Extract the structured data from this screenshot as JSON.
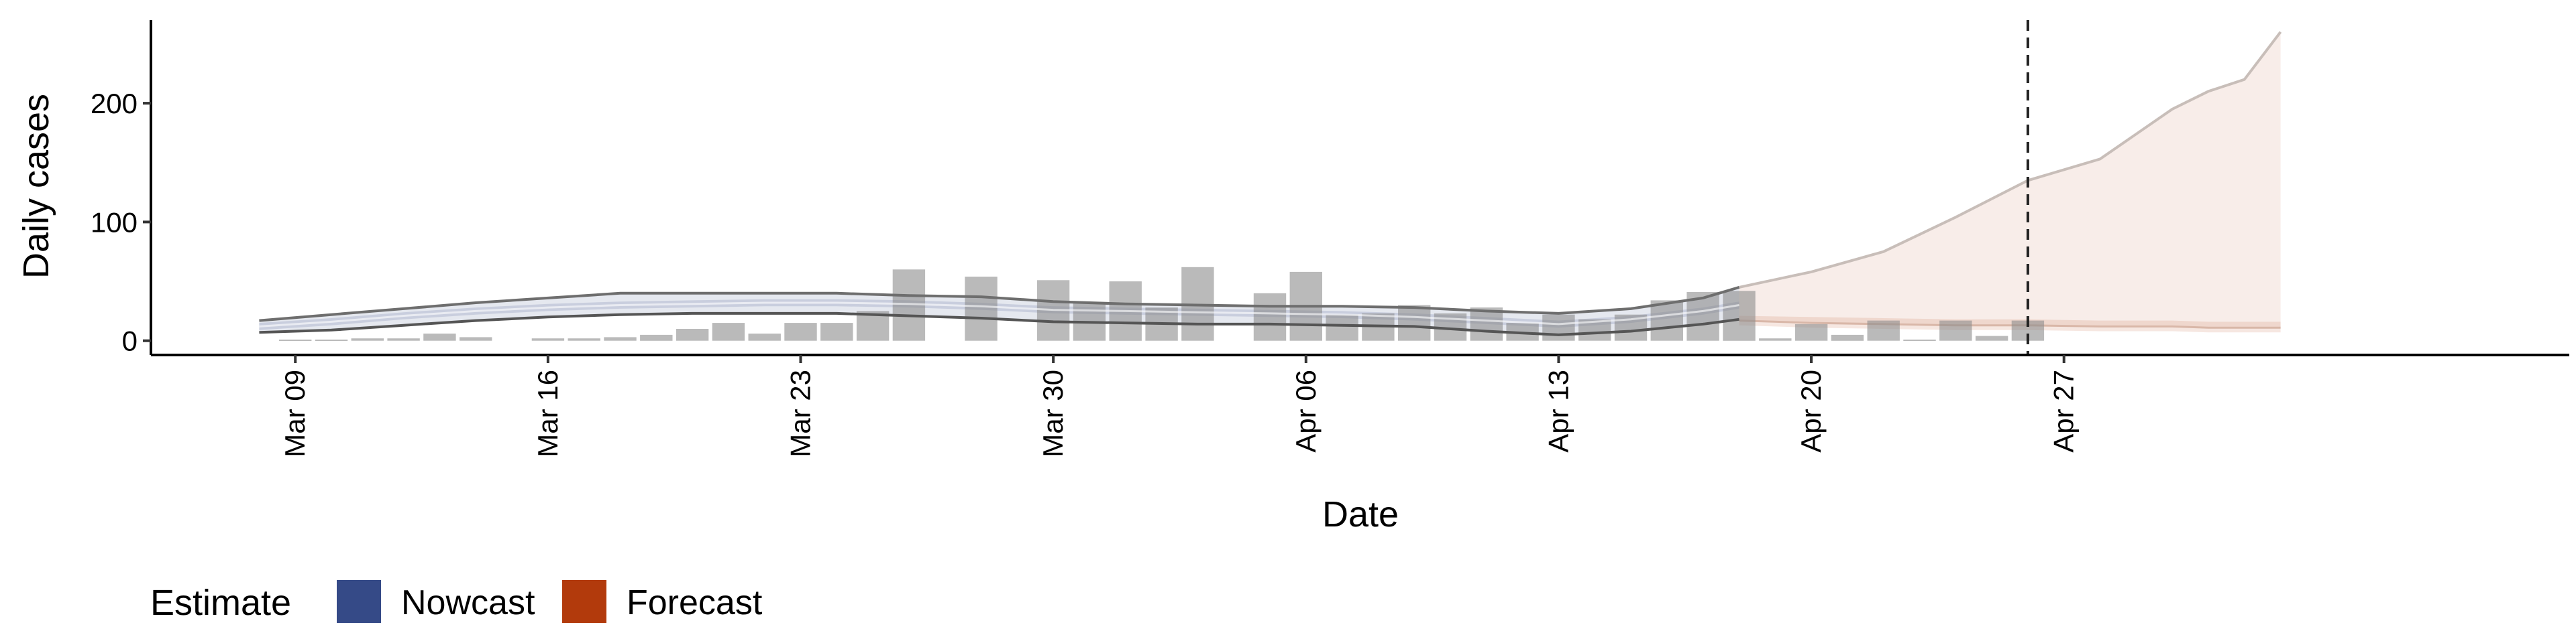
{
  "chart_data": {
    "type": "bar",
    "title": "",
    "xlabel": "Date",
    "ylabel": "Daily cases",
    "x_ticks": [
      "Mar 09",
      "Mar 16",
      "Mar 23",
      "Mar 30",
      "Apr 06",
      "Apr 13",
      "Apr 20",
      "Apr 27"
    ],
    "y_ticks": [
      0,
      100,
      200
    ],
    "ylim": [
      -12,
      270
    ],
    "xlim": [
      "2020-03-05",
      "2020-05-11"
    ],
    "grid": false,
    "legend": {
      "title": "Estimate",
      "position": "bottom-left",
      "items": [
        {
          "label": "Nowcast",
          "color": "#354a87"
        },
        {
          "label": "Forecast",
          "color": "#b23a0c"
        }
      ]
    },
    "vline_date": "2020-04-26",
    "reported_cases": {
      "color": "#8c8c8c",
      "dates": [
        "2020-03-09",
        "2020-03-10",
        "2020-03-11",
        "2020-03-12",
        "2020-03-13",
        "2020-03-14",
        "2020-03-15",
        "2020-03-16",
        "2020-03-17",
        "2020-03-18",
        "2020-03-19",
        "2020-03-20",
        "2020-03-21",
        "2020-03-22",
        "2020-03-23",
        "2020-03-24",
        "2020-03-25",
        "2020-03-26",
        "2020-03-27",
        "2020-03-28",
        "2020-03-29",
        "2020-03-30",
        "2020-03-31",
        "2020-04-01",
        "2020-04-02",
        "2020-04-03",
        "2020-04-04",
        "2020-04-05",
        "2020-04-06",
        "2020-04-07",
        "2020-04-08",
        "2020-04-09",
        "2020-04-10",
        "2020-04-11",
        "2020-04-12",
        "2020-04-13",
        "2020-04-14",
        "2020-04-15",
        "2020-04-16",
        "2020-04-17",
        "2020-04-18",
        "2020-04-19",
        "2020-04-20",
        "2020-04-21",
        "2020-04-22",
        "2020-04-23",
        "2020-04-24",
        "2020-04-25",
        "2020-04-26",
        "2020-04-27",
        "2020-04-28",
        "2020-04-29",
        "2020-04-30",
        "2020-05-01",
        "2020-05-02",
        "2020-05-03"
      ],
      "values": [
        1,
        1,
        2,
        2,
        6,
        3,
        0,
        2,
        2,
        3,
        5,
        10,
        15,
        6,
        15,
        15,
        25,
        60,
        0,
        54,
        0,
        51,
        32,
        50,
        28,
        62,
        0,
        40,
        58,
        22,
        23,
        30,
        23,
        28,
        15,
        22,
        18,
        22,
        34,
        41,
        42,
        2,
        14,
        5,
        17,
        1,
        17,
        4,
        17,
        0,
        0,
        0,
        0,
        0,
        0,
        0
      ]
    },
    "nowcast": {
      "color": "#354a87",
      "dates": [
        "2020-03-08",
        "2020-03-10",
        "2020-03-12",
        "2020-03-14",
        "2020-03-16",
        "2020-03-18",
        "2020-03-20",
        "2020-03-22",
        "2020-03-24",
        "2020-03-26",
        "2020-03-28",
        "2020-03-30",
        "2020-04-01",
        "2020-04-03",
        "2020-04-05",
        "2020-04-07",
        "2020-04-09",
        "2020-04-11",
        "2020-04-13",
        "2020-04-15",
        "2020-04-17",
        "2020-04-18"
      ],
      "median": [
        12,
        16,
        21,
        25,
        28,
        30,
        31,
        32,
        32,
        31,
        29,
        26,
        25,
        24,
        23,
        22,
        20,
        17,
        14,
        18,
        25,
        30
      ],
      "lower": [
        7,
        9,
        13,
        17,
        20,
        22,
        23,
        23,
        23,
        21,
        19,
        16,
        15,
        14,
        14,
        13,
        12,
        8,
        5,
        8,
        14,
        18
      ],
      "upper": [
        17,
        22,
        27,
        32,
        36,
        40,
        40,
        40,
        40,
        38,
        37,
        33,
        31,
        30,
        29,
        29,
        28,
        25,
        23,
        27,
        36,
        45
      ]
    },
    "forecast": {
      "color": "#b23a0c",
      "dates": [
        "2020-04-18",
        "2020-04-20",
        "2020-04-22",
        "2020-04-24",
        "2020-04-26",
        "2020-04-28",
        "2020-04-30",
        "2020-05-01",
        "2020-05-02",
        "2020-05-03"
      ],
      "upper": [
        45,
        58,
        75,
        104,
        135,
        153,
        195,
        210,
        220,
        260
      ],
      "lower": [
        17,
        15,
        14,
        13,
        13,
        12,
        12,
        11,
        11,
        11
      ],
      "median": [
        17,
        16,
        15,
        14,
        14,
        13,
        13,
        12,
        12,
        12
      ]
    }
  }
}
